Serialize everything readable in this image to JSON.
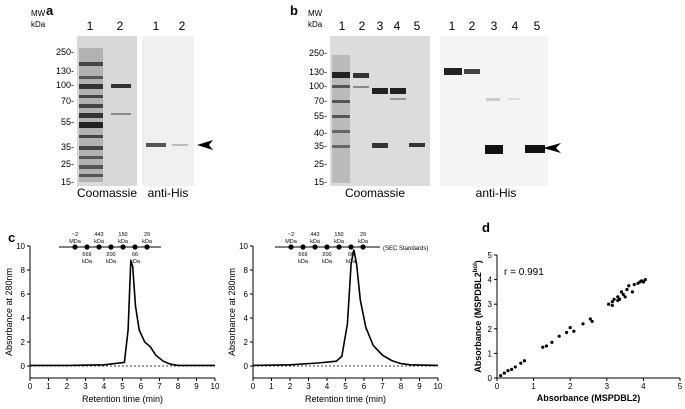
{
  "panels": {
    "a": {
      "label": "a",
      "mw_header": [
        "MW",
        "kDa"
      ],
      "markers": [
        "250-",
        "130-",
        "100-",
        "70-",
        "55-",
        "35-",
        "25-",
        "15-"
      ],
      "coomassie_lanes": [
        "1",
        "2"
      ],
      "antihis_lanes": [
        "1",
        "2"
      ],
      "coomassie_label": "Coomassie",
      "antihis_label": "anti-His"
    },
    "b": {
      "label": "b",
      "mw_header": [
        "MW",
        "kDa"
      ],
      "markers": [
        "250-",
        "130-",
        "100-",
        "70-",
        "55-",
        "40-",
        "35-",
        "25-",
        "15-"
      ],
      "coomassie_lanes": [
        "1",
        "2",
        "3",
        "4",
        "5"
      ],
      "antihis_lanes": [
        "1",
        "2",
        "3",
        "4",
        "5"
      ],
      "coomassie_label": "Coomassie",
      "antihis_label": "anti-His"
    },
    "c": {
      "label": "c",
      "sec_standards_label": "(SEC Standards)",
      "standards_top": [
        [
          "~2",
          "MDa"
        ],
        [
          "443",
          "kDa"
        ],
        [
          "150",
          "kDa"
        ],
        [
          "29",
          "kDa"
        ]
      ],
      "standards_bottom": [
        [
          "669",
          "kDa"
        ],
        [
          "200",
          "kDa"
        ],
        [
          "66",
          "kDa"
        ]
      ]
    },
    "d": {
      "label": "d",
      "r_label": "r = 0.991"
    }
  },
  "chart_data": [
    {
      "type": "line",
      "xlabel": "Retention time (min)",
      "ylabel": "Absorbance at 280nm",
      "xlim": [
        0,
        10
      ],
      "ylim": [
        -1,
        10
      ],
      "xticks": [
        0,
        1,
        2,
        3,
        4,
        5,
        6,
        7,
        8,
        9,
        10
      ],
      "yticks": [
        0,
        2,
        4,
        6,
        8,
        10
      ],
      "series": [
        {
          "x": [
            0,
            2,
            4,
            5.1,
            5.3,
            5.45,
            5.55,
            5.7,
            5.9,
            6.2,
            6.5,
            6.8,
            7.2,
            7.6,
            8.0,
            10
          ],
          "y": [
            0.05,
            0.05,
            0.1,
            0.3,
            3.0,
            8.8,
            8.3,
            5.0,
            3.0,
            2.0,
            1.6,
            0.9,
            0.4,
            0.15,
            0.05,
            0.05
          ]
        }
      ]
    },
    {
      "type": "line",
      "xlabel": "Retention time (min)",
      "ylabel": "Absorbance at 280nm",
      "xlim": [
        0,
        10
      ],
      "ylim": [
        -1,
        10
      ],
      "xticks": [
        0,
        1,
        2,
        3,
        4,
        5,
        6,
        7,
        8,
        9,
        10
      ],
      "yticks": [
        0,
        2,
        4,
        6,
        8,
        10
      ],
      "series": [
        {
          "x": [
            0,
            2,
            3.5,
            4.5,
            4.8,
            5.1,
            5.3,
            5.45,
            5.6,
            5.8,
            6.1,
            6.5,
            7.0,
            7.5,
            8.0,
            8.5,
            10
          ],
          "y": [
            0.05,
            0.1,
            0.25,
            0.4,
            0.8,
            3.5,
            8.5,
            9.7,
            8.5,
            5.5,
            3.2,
            1.7,
            0.9,
            0.45,
            0.2,
            0.1,
            0.05
          ]
        }
      ]
    },
    {
      "type": "scatter",
      "xlabel": "Absorbance (MSPDBL2)",
      "ylabel": "Absorbance (MSPDBL2",
      "ylabel_sup": "bol",
      "ylabel_end": ")",
      "xlim": [
        0,
        5
      ],
      "ylim": [
        0,
        5
      ],
      "xticks": [
        0,
        1,
        2,
        3,
        4,
        5
      ],
      "yticks": [
        0,
        1,
        2,
        3,
        4,
        5
      ],
      "series": [
        {
          "x": [
            0.1,
            0.2,
            0.3,
            0.4,
            0.5,
            0.65,
            0.75,
            1.25,
            1.35,
            1.5,
            1.7,
            1.9,
            2.0,
            2.1,
            2.35,
            2.55,
            2.6,
            3.05,
            3.15,
            3.2,
            3.3,
            3.35,
            3.4,
            3.45,
            3.5,
            3.55,
            3.6,
            3.7,
            3.75,
            3.85,
            3.9,
            3.95,
            4.0,
            4.05,
            3.3,
            3.15
          ],
          "y": [
            0.1,
            0.2,
            0.3,
            0.35,
            0.45,
            0.6,
            0.7,
            1.25,
            1.3,
            1.45,
            1.7,
            1.85,
            2.05,
            1.9,
            2.2,
            2.4,
            2.3,
            3.0,
            3.1,
            3.2,
            3.3,
            3.2,
            3.5,
            3.4,
            3.3,
            3.6,
            3.75,
            3.5,
            3.8,
            3.85,
            3.9,
            3.95,
            3.9,
            4.0,
            3.15,
            2.95
          ]
        }
      ]
    }
  ]
}
